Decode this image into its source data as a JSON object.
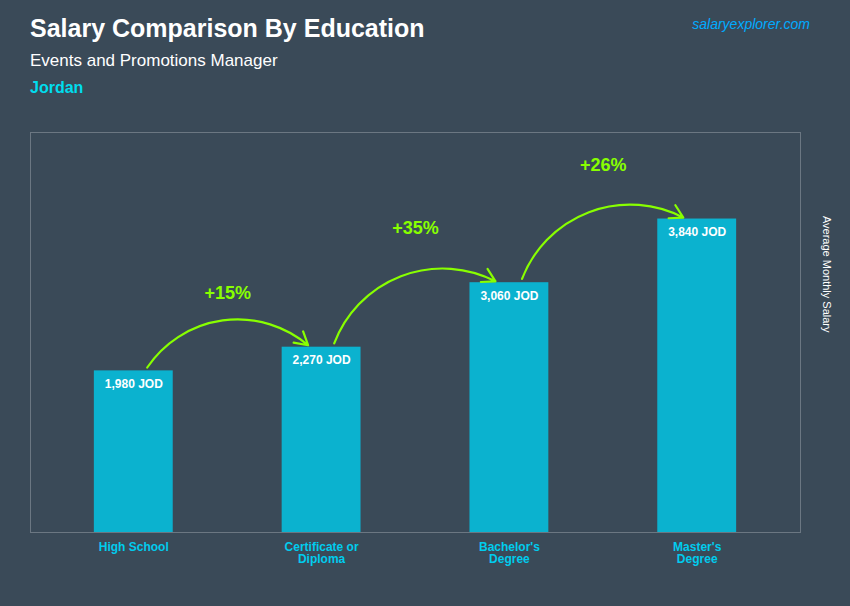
{
  "chart_data": {
    "type": "bar",
    "title": "Salary Comparison By Education",
    "subtitle": "Events and Promotions Manager",
    "country": "Jordan",
    "source": "salaryexplorer.com",
    "ylabel": "Average Monthly Salary",
    "categories": [
      "High School",
      "Certificate or\nDiploma",
      "Bachelor's\nDegree",
      "Master's\nDegree"
    ],
    "values": [
      1980,
      2270,
      3060,
      3840
    ],
    "value_labels": [
      "1,980 JOD",
      "2,270 JOD",
      "3,060 JOD",
      "3,840 JOD"
    ],
    "data_labels": true,
    "annotations": [
      "+15%",
      "+35%",
      "+26%"
    ],
    "color": "#00ccee",
    "ylim": [
      0,
      4900
    ],
    "yticks": [],
    "tick_labels": "x"
  }
}
